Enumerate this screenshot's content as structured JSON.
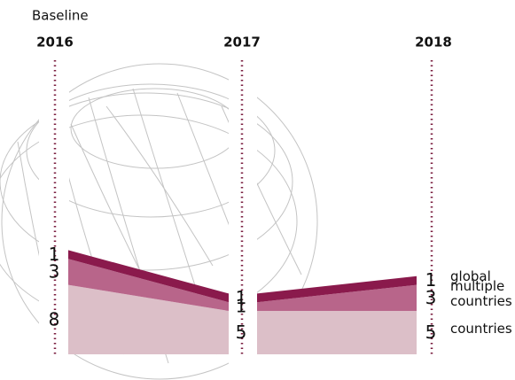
{
  "chart_data": {
    "type": "area",
    "annotation": "Baseline",
    "categories": [
      "2016",
      "2017",
      "2018"
    ],
    "series": [
      {
        "name": "countries",
        "color": "#dcbfc8",
        "values": [
          8,
          5,
          5
        ]
      },
      {
        "name": "multiple countries",
        "color": "#b8658a",
        "values": [
          3,
          1,
          3
        ]
      },
      {
        "name": "global",
        "color": "#8a1a4c",
        "values": [
          1,
          1,
          1
        ]
      }
    ]
  }
}
